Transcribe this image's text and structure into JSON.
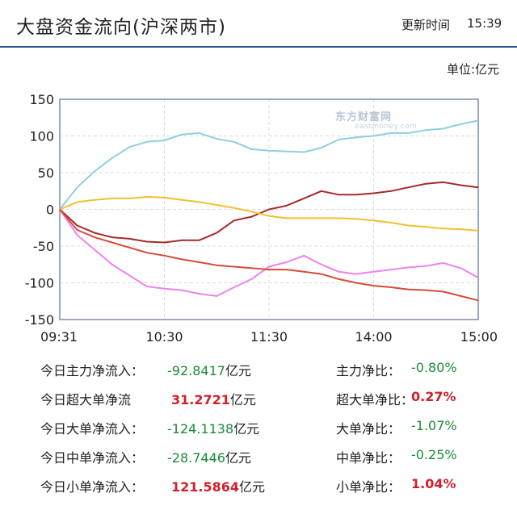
{
  "header": {
    "title": "大盘资金流向(沪深两市)",
    "time_label": "更新时间",
    "time_value": "15:39",
    "unit": "单位:亿元"
  },
  "watermark": {
    "main": "东方财富网",
    "sub": "eastmoney.com"
  },
  "colors": {
    "green": "#1a8a3a",
    "red": "#d0202a",
    "axis_border": "#7a8ea8"
  },
  "chart_data": {
    "type": "line",
    "x": [
      "09:31",
      "09:40",
      "09:50",
      "10:00",
      "10:10",
      "10:20",
      "10:30",
      "10:40",
      "10:50",
      "11:00",
      "11:10",
      "11:20",
      "11:30",
      "13:10",
      "13:20",
      "13:30",
      "13:40",
      "13:50",
      "14:00",
      "14:10",
      "14:20",
      "14:30",
      "14:40",
      "14:50",
      "15:00"
    ],
    "xticks": [
      "09:31",
      "10:30",
      "11:30",
      "14:00",
      "15:00"
    ],
    "ylim": [
      -150,
      150
    ],
    "yticks": [
      150,
      100,
      50,
      0,
      -50,
      -100,
      -150
    ],
    "grid": true,
    "series": [
      {
        "color": "#8ecfe0",
        "values": [
          0,
          30,
          52,
          70,
          85,
          92,
          94,
          102,
          104,
          96,
          92,
          82,
          80,
          79,
          78,
          84,
          95,
          98,
          100,
          104,
          104,
          108,
          110,
          116,
          121
        ]
      },
      {
        "color": "#a52a2a",
        "values": [
          0,
          -22,
          -32,
          -38,
          -40,
          -44,
          -45,
          -42,
          -42,
          -32,
          -15,
          -10,
          0,
          5,
          15,
          25,
          20,
          20,
          22,
          25,
          30,
          35,
          37,
          33,
          30
        ]
      },
      {
        "color": "#f0c030",
        "values": [
          0,
          10,
          13,
          15,
          15,
          17,
          16,
          13,
          10,
          6,
          2,
          -3,
          -9,
          -12,
          -12,
          -12,
          -12,
          -13,
          -15,
          -18,
          -22,
          -24,
          -26,
          -27,
          -29
        ]
      },
      {
        "color": "#ee82ee",
        "values": [
          0,
          -35,
          -55,
          -75,
          -90,
          -105,
          -108,
          -110,
          -115,
          -118,
          -106,
          -95,
          -78,
          -72,
          -63,
          -75,
          -85,
          -88,
          -85,
          -82,
          -79,
          -77,
          -73,
          -80,
          -93
        ]
      },
      {
        "color": "#d94a3a",
        "values": [
          0,
          -28,
          -38,
          -45,
          -52,
          -59,
          -63,
          -68,
          -72,
          -76,
          -78,
          -80,
          -82,
          -82,
          -85,
          -88,
          -95,
          -100,
          -104,
          -106,
          -109,
          -110,
          -112,
          -118,
          -124
        ]
      }
    ]
  },
  "stats": [
    {
      "label": "今日主力净流入：",
      "value": "-92.8417",
      "unit": "亿元",
      "sign": "neg",
      "ratio_label": "主力净比：",
      "ratio": "-0.80%",
      "ratio_sign": "neg"
    },
    {
      "label": "今日超大单净流",
      "value": "31.2721",
      "unit": "亿元",
      "sign": "pos",
      "ratio_label": "超大单净比：",
      "ratio": "0.27%",
      "ratio_sign": "pos"
    },
    {
      "label": "今日大单净流入：",
      "value": "-124.1138",
      "unit": "亿元",
      "sign": "neg",
      "ratio_label": "大单净比：",
      "ratio": "-1.07%",
      "ratio_sign": "neg"
    },
    {
      "label": "今日中单净流入：",
      "value": "-28.7446",
      "unit": "亿元",
      "sign": "neg",
      "ratio_label": "中单净比：",
      "ratio": "-0.25%",
      "ratio_sign": "neg"
    },
    {
      "label": "今日小单净流入：",
      "value": "121.5864",
      "unit": "亿元",
      "sign": "pos",
      "ratio_label": "小单净比：",
      "ratio": "1.04%",
      "ratio_sign": "pos"
    }
  ]
}
